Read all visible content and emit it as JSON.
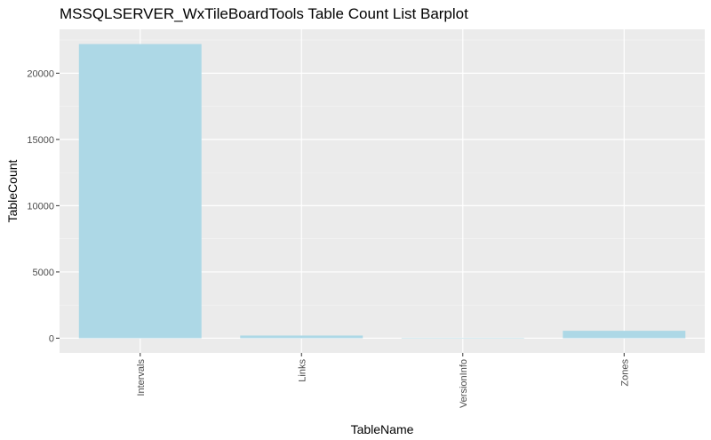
{
  "chart_data": {
    "type": "bar",
    "title": "MSSQLSERVER_WxTileBoardTools Table Count List Barplot",
    "xlabel": "TableName",
    "ylabel": "TableCount",
    "categories": [
      "Intervals",
      "Links",
      "VersionInfo",
      "Zones"
    ],
    "values": [
      22200,
      200,
      1,
      560
    ],
    "ylim": [
      -1110,
      23310
    ],
    "yticks": [
      0,
      5000,
      10000,
      15000,
      20000
    ],
    "ytick_labels": [
      "0",
      "5000",
      "10000",
      "15000",
      "20000"
    ],
    "grid": true,
    "legend": "none",
    "colors": {
      "bar": "#add8e6",
      "panel": "#ebebeb",
      "grid_major": "#ffffff",
      "grid_minor": "#f5f5f5",
      "tick_label": "#4d4d4d",
      "axis_title": "#000000"
    }
  }
}
